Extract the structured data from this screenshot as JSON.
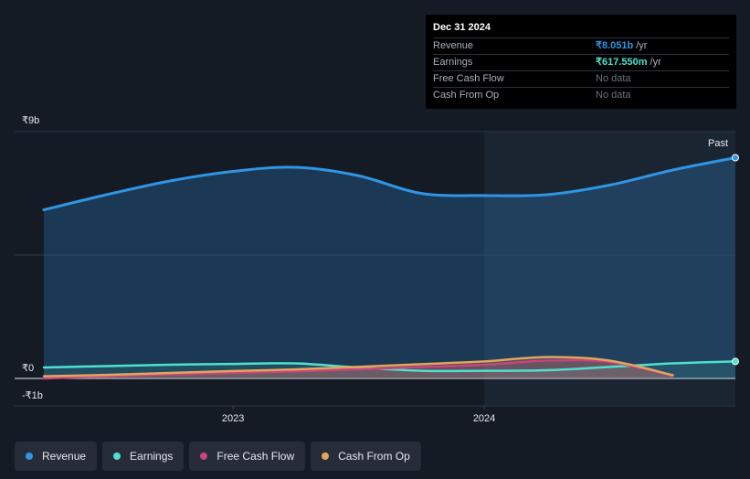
{
  "tooltip": {
    "date": "Dec 31 2024",
    "rows": [
      {
        "label": "Revenue",
        "value": "₹8.051b",
        "unit": "/yr",
        "color": "#2f95e4"
      },
      {
        "label": "Earnings",
        "value": "₹617.550m",
        "unit": "/yr",
        "color": "#4fe0cf"
      },
      {
        "label": "Free Cash Flow",
        "value": "No data",
        "unit": "",
        "color": ""
      },
      {
        "label": "Cash From Op",
        "value": "No data",
        "unit": "",
        "color": ""
      }
    ]
  },
  "legend": [
    {
      "label": "Revenue",
      "color": "#2f95e4"
    },
    {
      "label": "Earnings",
      "color": "#4fe0cf"
    },
    {
      "label": "Free Cash Flow",
      "color": "#c8457d"
    },
    {
      "label": "Cash From Op",
      "color": "#e4a55b"
    }
  ],
  "chart_data": {
    "type": "area",
    "y_unit": "₹ billions",
    "ylim": [
      -1,
      9
    ],
    "yticks": [
      {
        "value": 9,
        "label": "₹9b"
      },
      {
        "value": 0,
        "label": "₹0"
      },
      {
        "value": -1,
        "label": "-₹1b"
      }
    ],
    "xlim": [
      "2022-04-01",
      "2024-12-31"
    ],
    "xticks": [
      {
        "value": "2023-01-01",
        "label": "2023"
      },
      {
        "value": "2024-01-01",
        "label": "2024"
      }
    ],
    "past_label": "Past",
    "past_start": "2024-01-01",
    "series": [
      {
        "name": "Revenue",
        "color": "#2f95e4",
        "fill": true,
        "x": [
          "2022-04-01",
          "2022-07-01",
          "2022-10-01",
          "2023-01-01",
          "2023-04-01",
          "2023-07-01",
          "2023-10-01",
          "2024-01-01",
          "2024-04-01",
          "2024-07-01",
          "2024-10-01",
          "2024-12-31"
        ],
        "y": [
          6.15,
          6.7,
          7.2,
          7.55,
          7.7,
          7.4,
          6.75,
          6.67,
          6.7,
          7.05,
          7.6,
          8.05
        ]
      },
      {
        "name": "Earnings",
        "color": "#4fe0cf",
        "fill": true,
        "x": [
          "2022-04-01",
          "2022-07-01",
          "2022-10-01",
          "2023-01-01",
          "2023-04-01",
          "2023-07-01",
          "2023-10-01",
          "2024-01-01",
          "2024-04-01",
          "2024-07-01",
          "2024-10-01",
          "2024-12-31"
        ],
        "y": [
          0.4,
          0.45,
          0.5,
          0.53,
          0.55,
          0.4,
          0.28,
          0.28,
          0.3,
          0.42,
          0.55,
          0.62
        ]
      },
      {
        "name": "Free Cash Flow",
        "color": "#c8457d",
        "fill": true,
        "x": [
          "2022-04-01",
          "2022-07-01",
          "2022-10-01",
          "2023-01-01",
          "2023-04-01",
          "2023-07-01",
          "2023-10-01",
          "2024-01-01",
          "2024-04-01",
          "2024-07-01",
          "2024-10-01"
        ],
        "y": [
          0.0,
          0.08,
          0.15,
          0.2,
          0.26,
          0.33,
          0.42,
          0.5,
          0.65,
          0.6,
          0.1
        ]
      },
      {
        "name": "Cash From Op",
        "color": "#e4a55b",
        "fill": true,
        "x": [
          "2022-04-01",
          "2022-07-01",
          "2022-10-01",
          "2023-01-01",
          "2023-04-01",
          "2023-07-01",
          "2023-10-01",
          "2024-01-01",
          "2024-04-01",
          "2024-07-01",
          "2024-10-01"
        ],
        "y": [
          0.08,
          0.13,
          0.2,
          0.27,
          0.33,
          0.42,
          0.52,
          0.62,
          0.78,
          0.65,
          0.12
        ]
      }
    ]
  }
}
